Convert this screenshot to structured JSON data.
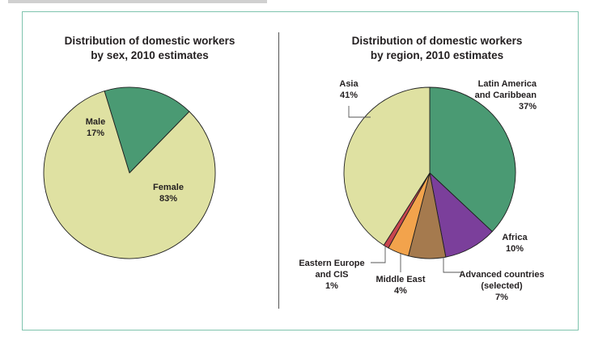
{
  "chart_data": [
    {
      "type": "pie",
      "title": [
        "Distribution of domestic workers",
        "by sex, 2010 estimates"
      ],
      "slices": [
        {
          "label": "Male",
          "value": 17,
          "pct_label": "17%",
          "color": "#4a9a73"
        },
        {
          "label": "Female",
          "value": 83,
          "pct_label": "83%",
          "color": "#dfe1a2"
        }
      ]
    },
    {
      "type": "pie",
      "title": [
        "Distribution of domestic workers",
        "by region, 2010 estimates"
      ],
      "slices": [
        {
          "label": [
            "Latin America",
            "and Caribbean"
          ],
          "value": 37,
          "pct_label": "37%",
          "color": "#4a9a73"
        },
        {
          "label": [
            "Africa"
          ],
          "value": 10,
          "pct_label": "10%",
          "color": "#7b3f9b"
        },
        {
          "label": [
            "Advanced countries",
            "(selected)"
          ],
          "value": 7,
          "pct_label": "7%",
          "color": "#a57a4e"
        },
        {
          "label": [
            "Middle East"
          ],
          "value": 4,
          "pct_label": "4%",
          "color": "#f2a34c"
        },
        {
          "label": [
            "Eastern Europe",
            "and CIS"
          ],
          "value": 1,
          "pct_label": "1%",
          "color": "#c8454f"
        },
        {
          "label": [
            "Asia"
          ],
          "value": 41,
          "pct_label": "41%",
          "color": "#dfe1a2"
        }
      ]
    }
  ]
}
